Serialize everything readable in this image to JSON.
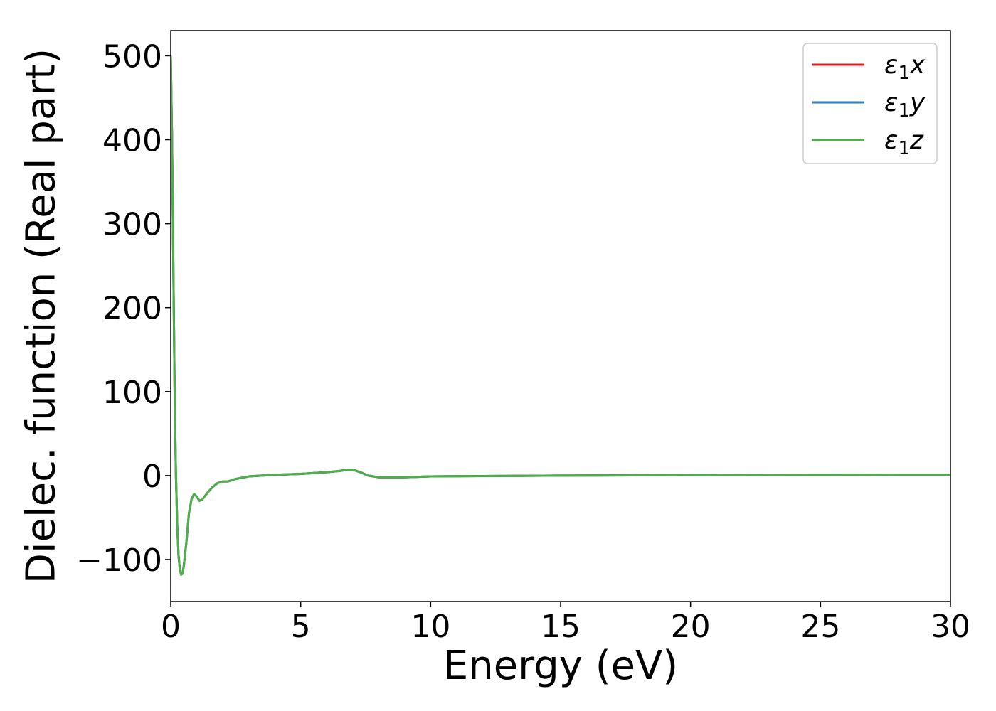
{
  "chart_data": {
    "type": "line",
    "title": "",
    "xlabel": "Energy (eV)",
    "ylabel": "Dielec. function (Real part)",
    "xlim": [
      0,
      30
    ],
    "ylim": [
      -150,
      530
    ],
    "x_ticks": [
      0,
      5,
      10,
      15,
      20,
      25,
      30
    ],
    "x_tick_labels": [
      "0",
      "5",
      "10",
      "15",
      "20",
      "25",
      "30"
    ],
    "y_ticks": [
      -100,
      0,
      100,
      200,
      300,
      400,
      500
    ],
    "y_tick_labels": [
      "−100",
      "0",
      "100",
      "200",
      "300",
      "400",
      "500"
    ],
    "grid": false,
    "legend_position": "top-right",
    "series": [
      {
        "name": "ε1x",
        "color": "#e41a1c",
        "x": [
          0,
          0.05,
          0.1,
          0.15,
          0.2,
          0.25,
          0.3,
          0.35,
          0.4,
          0.45,
          0.5,
          0.6,
          0.7,
          0.8,
          0.9,
          1.0,
          1.1,
          1.2,
          1.4,
          1.6,
          1.8,
          2.0,
          2.2,
          2.5,
          3.0,
          3.5,
          4.0,
          5.0,
          6.0,
          6.5,
          6.8,
          7.0,
          7.3,
          7.6,
          8.0,
          9.0,
          10.0,
          12.0,
          15.0,
          20.0,
          25.0,
          30.0
        ],
        "y": [
          500,
          400,
          250,
          100,
          0,
          -60,
          -95,
          -112,
          -118,
          -117,
          -108,
          -80,
          -45,
          -28,
          -22,
          -25,
          -30,
          -29,
          -21,
          -14,
          -9,
          -7,
          -7,
          -4,
          -1,
          0,
          1,
          2,
          4,
          5.5,
          7,
          7,
          4,
          0,
          -2,
          -2,
          -1,
          -0.5,
          0,
          0.5,
          1,
          1.2
        ]
      },
      {
        "name": "ε1y",
        "color": "#377eb8",
        "x": [
          0,
          0.05,
          0.1,
          0.15,
          0.2,
          0.25,
          0.3,
          0.35,
          0.4,
          0.45,
          0.5,
          0.6,
          0.7,
          0.8,
          0.9,
          1.0,
          1.1,
          1.2,
          1.4,
          1.6,
          1.8,
          2.0,
          2.2,
          2.5,
          3.0,
          3.5,
          4.0,
          5.0,
          6.0,
          6.5,
          6.8,
          7.0,
          7.3,
          7.6,
          8.0,
          9.0,
          10.0,
          12.0,
          15.0,
          20.0,
          25.0,
          30.0
        ],
        "y": [
          500,
          400,
          250,
          100,
          0,
          -60,
          -95,
          -112,
          -118,
          -117,
          -108,
          -80,
          -45,
          -28,
          -22,
          -25,
          -30,
          -29,
          -21,
          -14,
          -9,
          -7,
          -7,
          -4,
          -1,
          0,
          1,
          2,
          4,
          5.5,
          7,
          7,
          4,
          0,
          -2,
          -2,
          -1,
          -0.5,
          0,
          0.5,
          1,
          1.2
        ]
      },
      {
        "name": "ε1z",
        "color": "#4daf4a",
        "x": [
          0,
          0.05,
          0.1,
          0.15,
          0.2,
          0.25,
          0.3,
          0.35,
          0.4,
          0.45,
          0.5,
          0.6,
          0.7,
          0.8,
          0.9,
          1.0,
          1.1,
          1.2,
          1.4,
          1.6,
          1.8,
          2.0,
          2.2,
          2.5,
          3.0,
          3.5,
          4.0,
          5.0,
          6.0,
          6.5,
          6.8,
          7.0,
          7.3,
          7.6,
          8.0,
          9.0,
          10.0,
          12.0,
          15.0,
          20.0,
          25.0,
          30.0
        ],
        "y": [
          500,
          400,
          250,
          100,
          0,
          -60,
          -95,
          -112,
          -118,
          -117,
          -108,
          -80,
          -45,
          -28,
          -22,
          -25,
          -30,
          -29,
          -21,
          -14,
          -9,
          -7,
          -7,
          -4,
          -1,
          0,
          1,
          2,
          4,
          5.5,
          7,
          7,
          4,
          0,
          -2,
          -2,
          -1,
          -0.5,
          0,
          0.5,
          1,
          1.2
        ]
      }
    ]
  },
  "legend": {
    "entries": [
      {
        "base": "ε",
        "sub": "1",
        "comp": "x"
      },
      {
        "base": "ε",
        "sub": "1",
        "comp": "y"
      },
      {
        "base": "ε",
        "sub": "1",
        "comp": "z"
      }
    ]
  }
}
